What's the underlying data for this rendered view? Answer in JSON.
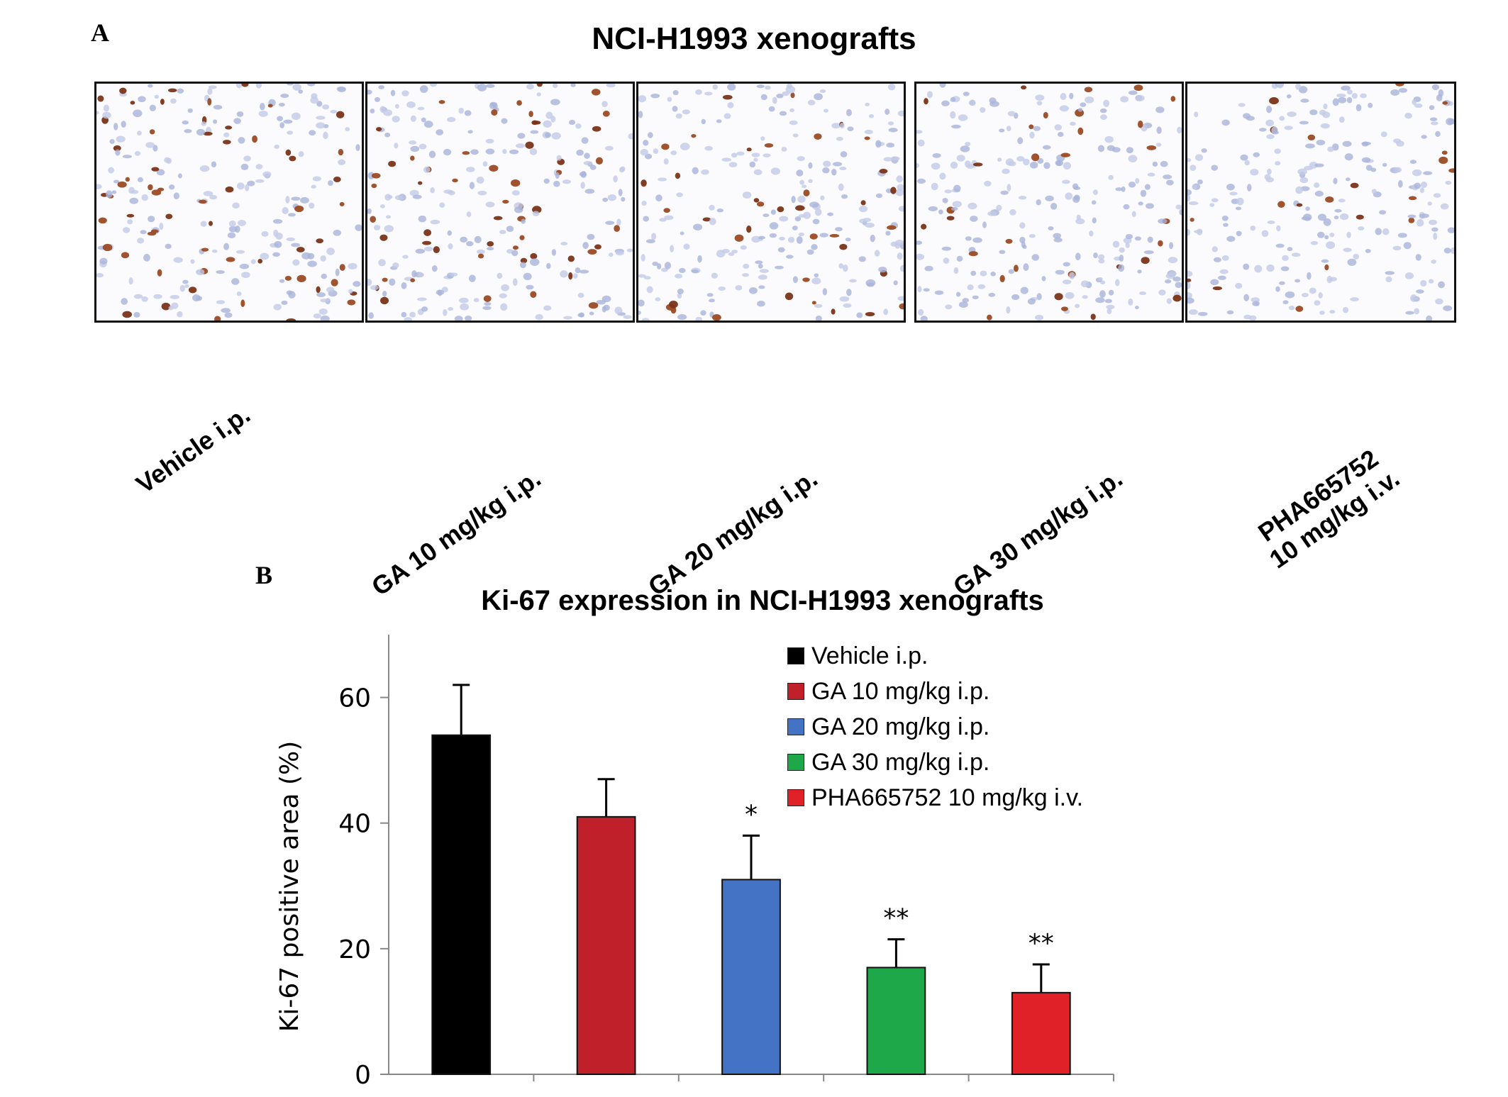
{
  "panel_a": {
    "letter": "A",
    "title": "NCI-H1993 xenografts",
    "images": [
      {
        "label_line1": "Vehicle i.p.",
        "label_line2": "",
        "density": 0.55
      },
      {
        "label_line1": "GA 10 mg/kg i.p.",
        "label_line2": "",
        "density": 0.45
      },
      {
        "label_line1": "GA 20 mg/kg i.p.",
        "label_line2": "",
        "density": 0.38
      },
      {
        "label_line1": "GA 30 mg/kg i.p.",
        "label_line2": "",
        "density": 0.25
      },
      {
        "label_line1": "PHA665752",
        "label_line2": "10 mg/kg  i.v.",
        "density": 0.18
      }
    ]
  },
  "panel_b": {
    "letter": "B"
  },
  "chart_data": {
    "type": "bar",
    "title": "Ki-67 expression in NCI-H1993 xenografts",
    "xlabel": "",
    "ylabel": "Ki-67 positive area (%)",
    "ylim": [
      0,
      70
    ],
    "yticks": [
      0,
      20,
      40,
      60
    ],
    "categories": [
      "Vehicle i.p.",
      "GA 10 mg/kg i.p.",
      "GA 20 mg/kg i.p.",
      "GA 30 mg/kg i.p.",
      "PHA665752 10 mg/kg i.v."
    ],
    "values": [
      54,
      41,
      31,
      17,
      13
    ],
    "error": [
      8,
      6,
      7,
      4.5,
      4.5
    ],
    "significance": [
      "",
      "",
      "*",
      "**",
      "**"
    ],
    "colors": [
      "#000000",
      "#c0202a",
      "#4472c4",
      "#1fa84a",
      "#e02127"
    ],
    "legend_position": "top-right",
    "grid": false
  }
}
